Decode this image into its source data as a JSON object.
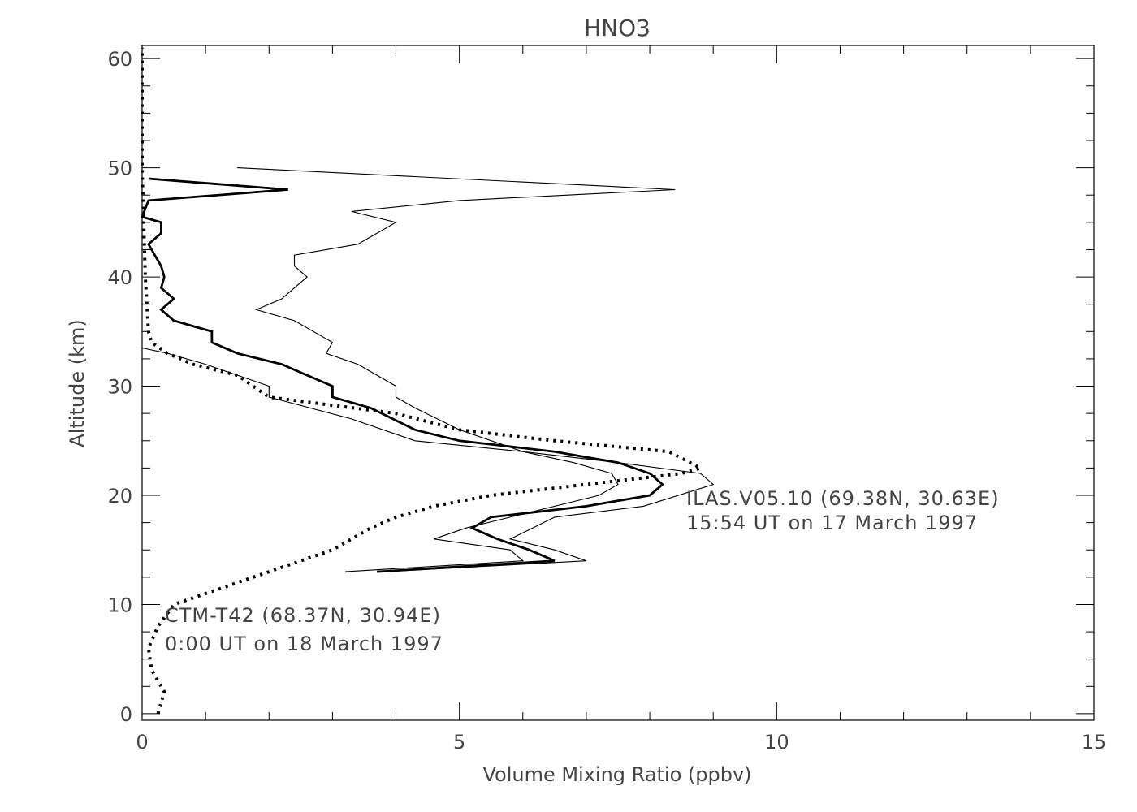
{
  "chart_data": {
    "type": "line",
    "title": "HNO3",
    "xlabel": "Volume Mixing Ratio (ppbv)",
    "ylabel": "Altitude (km)",
    "xlim": [
      0,
      15
    ],
    "ylim": [
      0,
      60
    ],
    "x_ticks": [
      "0",
      "5",
      "10",
      "15"
    ],
    "y_ticks": [
      "0",
      "10",
      "20",
      "30",
      "40",
      "50",
      "60"
    ],
    "grid": false,
    "series": [
      {
        "style": "thick-solid",
        "color": "#000000",
        "points": [
          [
            3.7,
            13
          ],
          [
            6.5,
            14
          ],
          [
            6.1,
            15
          ],
          [
            5.6,
            16
          ],
          [
            5.2,
            17
          ],
          [
            5.5,
            18
          ],
          [
            7.0,
            19
          ],
          [
            8.0,
            20
          ],
          [
            8.2,
            21
          ],
          [
            8.0,
            22
          ],
          [
            7.5,
            23
          ],
          [
            6.5,
            24
          ],
          [
            5.0,
            25
          ],
          [
            4.3,
            26
          ],
          [
            3.6,
            28
          ],
          [
            3.0,
            29
          ],
          [
            3.0,
            30
          ],
          [
            2.6,
            31
          ],
          [
            2.2,
            32
          ],
          [
            1.5,
            33
          ],
          [
            1.1,
            34
          ],
          [
            1.1,
            35
          ],
          [
            0.5,
            36
          ],
          [
            0.3,
            37
          ],
          [
            0.5,
            38
          ],
          [
            0.3,
            39
          ],
          [
            0.35,
            40
          ],
          [
            0.3,
            41
          ],
          [
            0.2,
            42
          ],
          [
            0.1,
            43
          ],
          [
            0.3,
            44
          ],
          [
            0.3,
            45
          ],
          [
            0.0,
            45.5
          ],
          [
            0.1,
            47
          ],
          [
            2.3,
            48
          ],
          [
            0.1,
            49
          ]
        ]
      },
      {
        "style": "thin-solid-upper",
        "color": "#000000",
        "points": [
          [
            3.8,
            13
          ],
          [
            7.0,
            14
          ],
          [
            6.5,
            15
          ],
          [
            5.8,
            16
          ],
          [
            6.5,
            18
          ],
          [
            7.9,
            19
          ],
          [
            9.0,
            21
          ],
          [
            8.8,
            22
          ],
          [
            7.5,
            23
          ],
          [
            6.0,
            24
          ],
          [
            5.0,
            26
          ],
          [
            4.3,
            28
          ],
          [
            4.0,
            29
          ],
          [
            4.0,
            30
          ],
          [
            3.4,
            32
          ],
          [
            2.9,
            33
          ],
          [
            3.0,
            34
          ],
          [
            2.4,
            36
          ],
          [
            1.8,
            37
          ],
          [
            2.2,
            38
          ],
          [
            2.6,
            40
          ],
          [
            2.4,
            41
          ],
          [
            2.4,
            42
          ],
          [
            3.4,
            43
          ],
          [
            4.0,
            45
          ],
          [
            3.3,
            46
          ],
          [
            5.0,
            47
          ],
          [
            8.4,
            48
          ],
          [
            1.5,
            50
          ]
        ]
      },
      {
        "style": "thin-solid-lower",
        "color": "#000000",
        "points": [
          [
            3.2,
            13
          ],
          [
            6.0,
            14
          ],
          [
            5.8,
            15
          ],
          [
            4.6,
            16
          ],
          [
            5.1,
            17
          ],
          [
            5.8,
            18
          ],
          [
            7.2,
            20
          ],
          [
            7.5,
            21
          ],
          [
            7.4,
            22
          ],
          [
            6.8,
            23
          ],
          [
            6.0,
            24
          ],
          [
            4.3,
            25
          ],
          [
            3.3,
            27
          ],
          [
            2.0,
            29
          ],
          [
            2.0,
            30
          ],
          [
            1.0,
            32
          ],
          [
            0.4,
            33
          ],
          [
            0.0,
            33.5
          ]
        ]
      },
      {
        "style": "dotted",
        "color": "#000000",
        "points": [
          [
            0.25,
            0
          ],
          [
            0.35,
            2
          ],
          [
            0.15,
            4
          ],
          [
            0.1,
            6
          ],
          [
            0.25,
            8
          ],
          [
            0.5,
            10
          ],
          [
            1.0,
            11
          ],
          [
            2.0,
            13
          ],
          [
            3.0,
            15
          ],
          [
            3.6,
            17
          ],
          [
            4.0,
            18
          ],
          [
            4.6,
            19
          ],
          [
            5.5,
            20
          ],
          [
            7.0,
            21
          ],
          [
            8.5,
            22
          ],
          [
            8.8,
            22.5
          ],
          [
            8.3,
            24
          ],
          [
            6.5,
            25
          ],
          [
            5.0,
            26
          ],
          [
            4.0,
            27.5
          ],
          [
            2.0,
            29
          ],
          [
            1.5,
            31
          ],
          [
            0.8,
            32
          ],
          [
            0.4,
            33
          ],
          [
            0.15,
            34
          ],
          [
            0.1,
            35
          ],
          [
            0.05,
            40
          ],
          [
            0.0,
            50
          ],
          [
            0.0,
            61
          ]
        ]
      }
    ],
    "annotations": {
      "ilas_line1": "ILAS.V05.10 (69.38N, 30.63E)",
      "ilas_line2": "15:54 UT on 17 March 1997",
      "ctm_line1": "CTM-T42 (68.37N, 30.94E)",
      "ctm_line2": "0:00 UT on 18 March 1997"
    }
  }
}
